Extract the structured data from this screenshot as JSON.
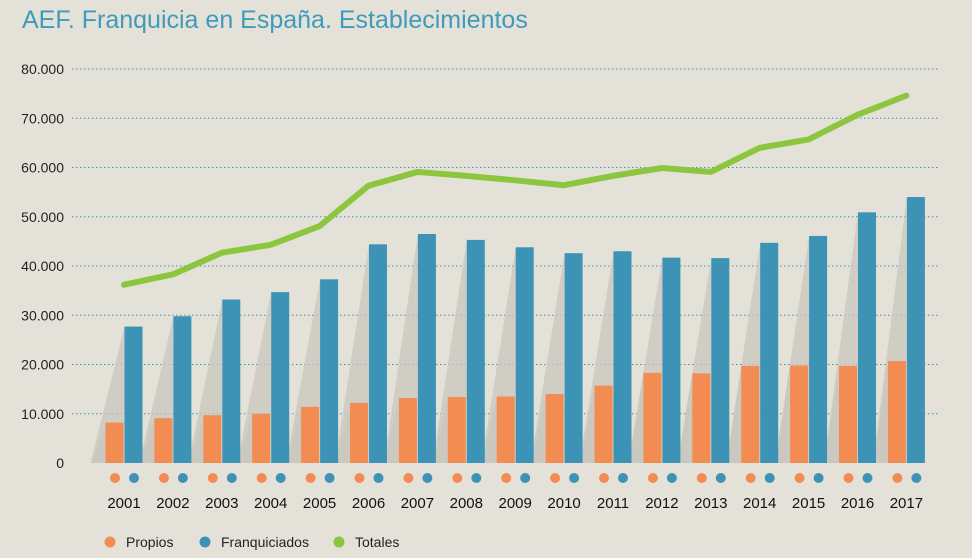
{
  "title": "AEF. Franquicia en España. Establecimientos",
  "colors": {
    "propios": "#f28c52",
    "franquiciados": "#3d93b5",
    "totales": "#8cc63f",
    "grid": "#3d93b5",
    "shadow": "#c9c7bd"
  },
  "chart_data": {
    "type": "bar",
    "title": "AEF. Franquicia en España. Establecimientos",
    "categories": [
      "2001",
      "2002",
      "2003",
      "2004",
      "2005",
      "2006",
      "2007",
      "2008",
      "2009",
      "2010",
      "2011",
      "2012",
      "2013",
      "2014",
      "2015",
      "2016",
      "2017"
    ],
    "series": [
      {
        "name": "Propios",
        "type": "bar",
        "values": [
          8200,
          9100,
          9700,
          10000,
          11400,
          12200,
          13200,
          13400,
          13500,
          14000,
          15700,
          18300,
          18200,
          19700,
          19800,
          19700,
          20700
        ]
      },
      {
        "name": "Franquiciados",
        "type": "bar",
        "values": [
          27700,
          29800,
          33200,
          34700,
          37300,
          44400,
          46500,
          45300,
          43800,
          42600,
          43000,
          41700,
          41600,
          44700,
          46100,
          50900,
          54000
        ]
      },
      {
        "name": "Totales",
        "type": "line",
        "values": [
          36200,
          38300,
          42700,
          44300,
          48100,
          56300,
          59100,
          58300,
          57400,
          56400,
          58300,
          59900,
          59100,
          64000,
          65700,
          70700,
          74600
        ]
      }
    ],
    "yticks": [
      "0",
      "10.000",
      "20.000",
      "30.000",
      "40.000",
      "50.000",
      "60.000",
      "70.000",
      "80.000"
    ],
    "ylim": [
      0,
      80000
    ],
    "xlabel": "",
    "ylabel": "",
    "legend": [
      "Propios",
      "Franquiciados",
      "Totales"
    ],
    "legend_position": "bottom-left"
  }
}
